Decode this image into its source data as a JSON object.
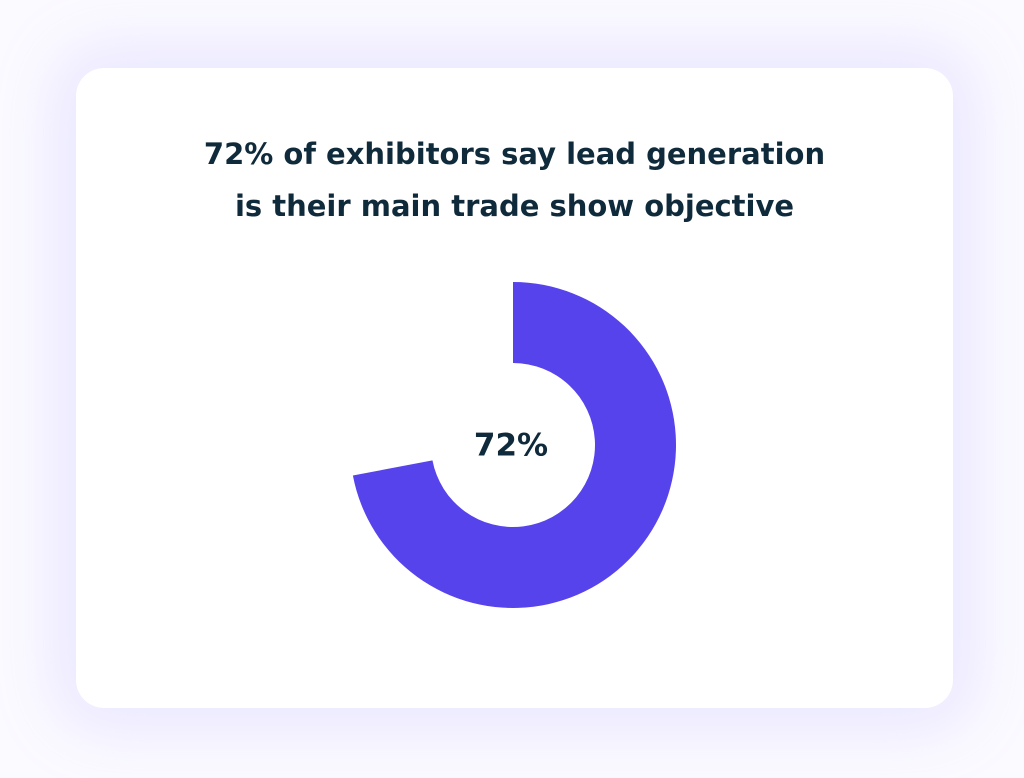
{
  "chart_data": {
    "type": "donut",
    "title": [
      "72% of exhibitors say lead generation",
      "is their main trade show objective"
    ],
    "values": [
      72
    ],
    "value_labels": [
      "72%"
    ],
    "color": "#5643ec"
  }
}
